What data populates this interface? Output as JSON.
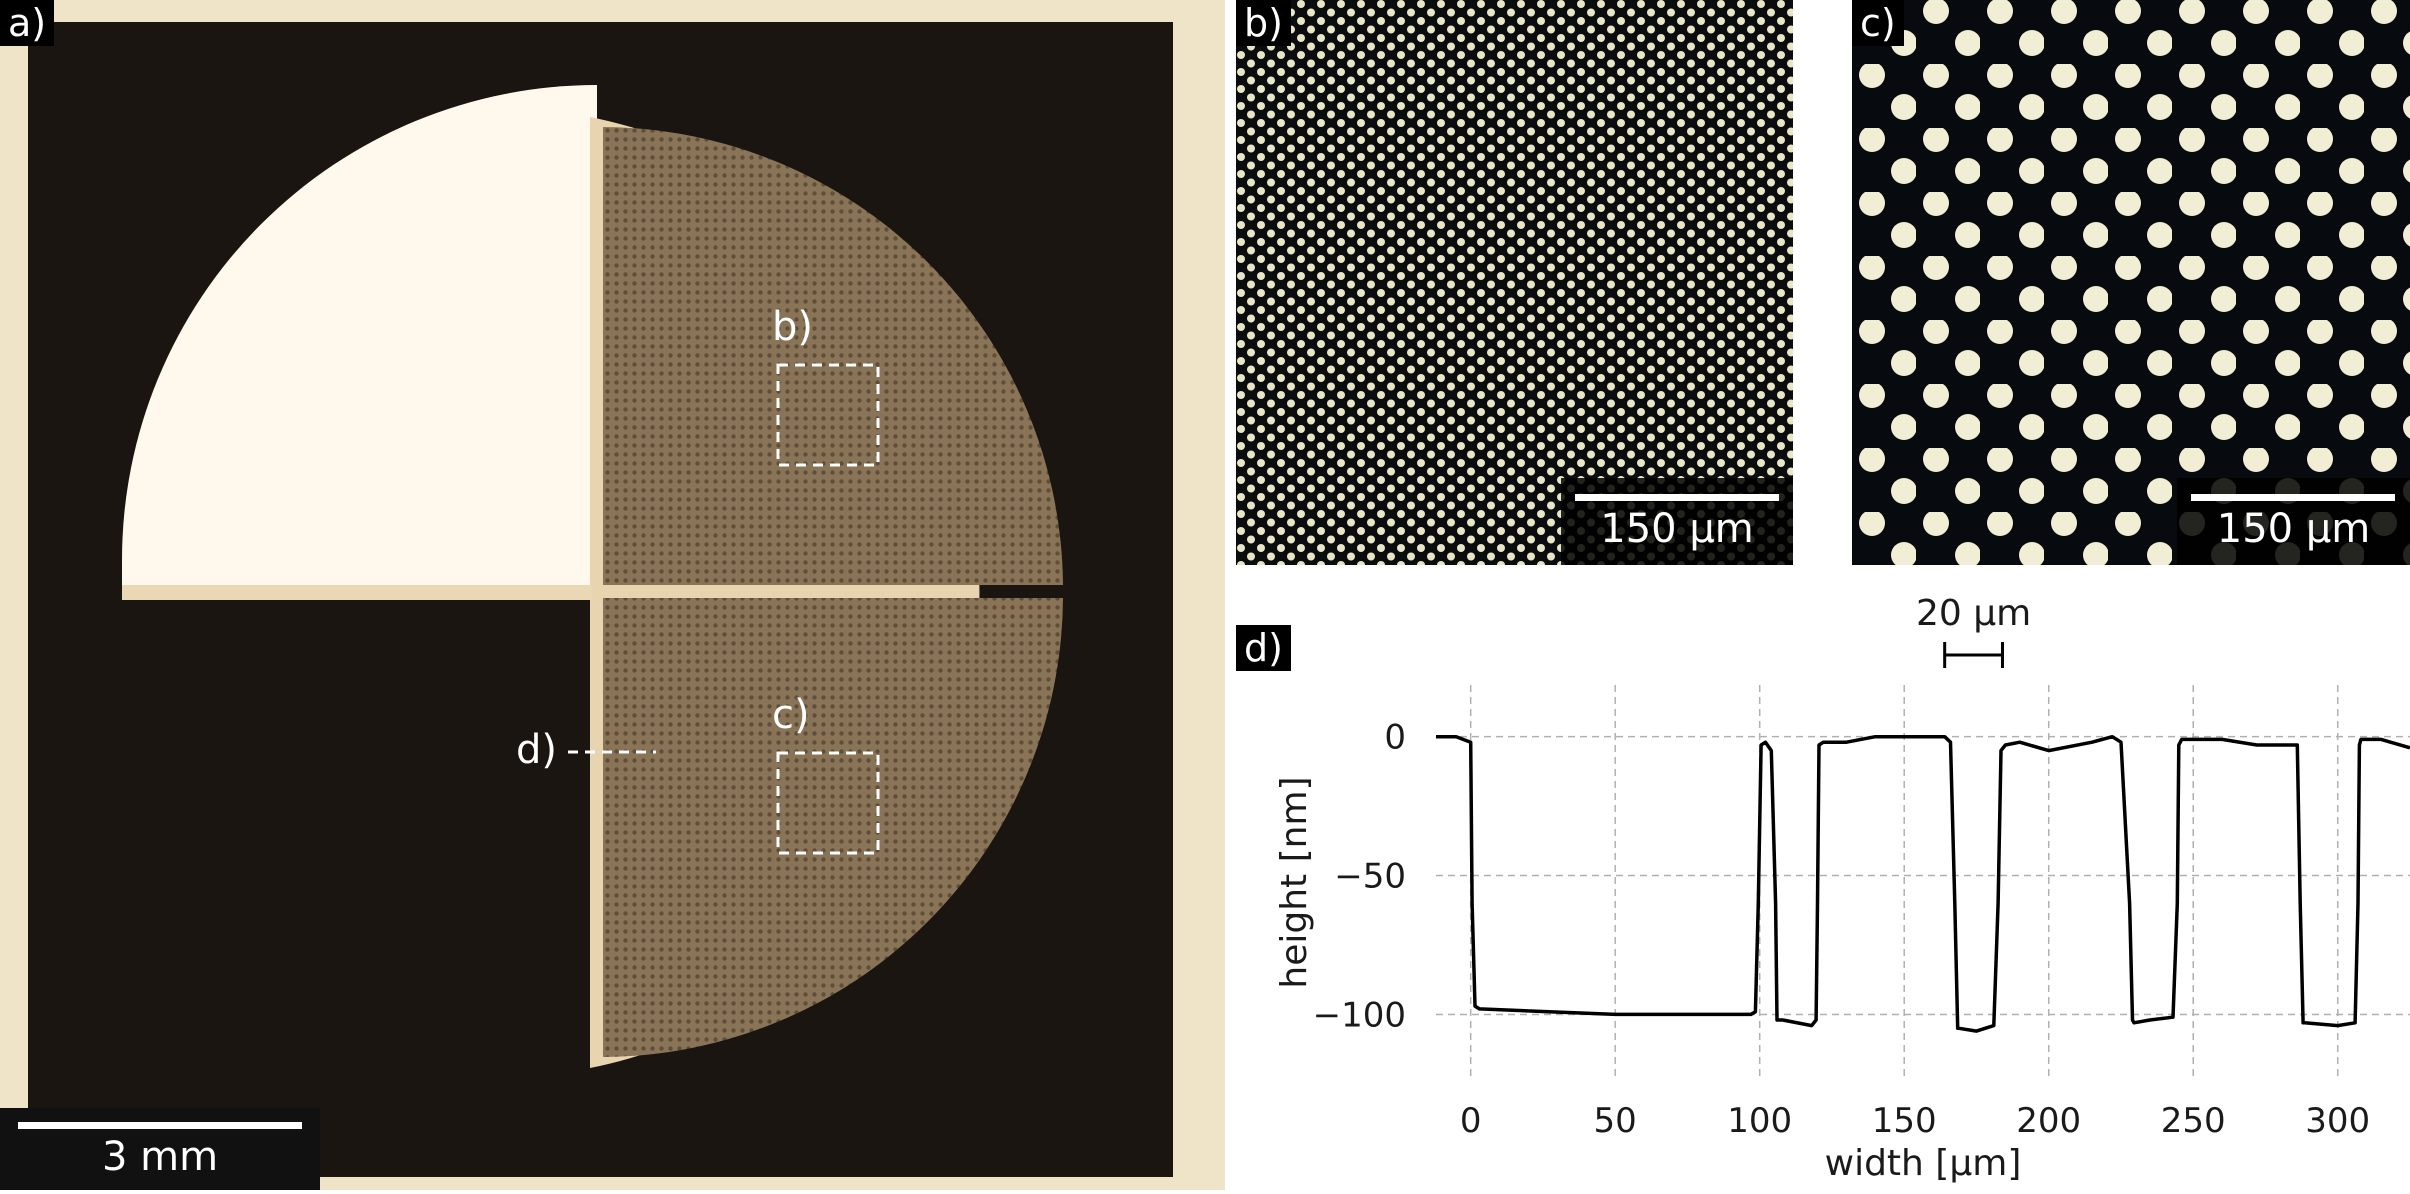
{
  "panel_a": {
    "label": "a)",
    "scale_label": "3 mm",
    "callouts": [
      {
        "id": "b",
        "label": "b)"
      },
      {
        "id": "c",
        "label": "c)"
      },
      {
        "id": "d",
        "label": "d)"
      }
    ]
  },
  "panel_b": {
    "label": "b)",
    "scale_label": "150 µm"
  },
  "panel_c": {
    "label": "c)",
    "scale_label": "150 µm"
  },
  "panel_d": {
    "label": "d)",
    "reference_label": "20 µm"
  },
  "chart_data": {
    "type": "line",
    "title": "",
    "xlabel": "width [µm]",
    "ylabel": "height [nm]",
    "xlim": [
      -12,
      325
    ],
    "ylim": [
      -120,
      15
    ],
    "grid": true,
    "x_ticks": [
      0,
      50,
      100,
      150,
      200,
      250,
      300
    ],
    "y_ticks": [
      0,
      -50,
      -100
    ],
    "reference_bar": {
      "label": "20 µm",
      "x_start": 164,
      "x_end": 184
    },
    "series": [
      {
        "x": [
          -12,
          -5,
          0,
          0.5,
          1.5,
          3,
          50,
          97,
          98.5,
          99.5,
          100.5,
          102,
          104,
          105.5,
          106,
          108,
          118,
          119.5,
          120,
          120.5,
          122,
          130,
          140,
          164,
          166,
          167.5,
          168.5,
          169,
          175,
          181,
          182.5,
          183.5,
          185,
          190,
          200,
          215,
          222,
          225,
          228,
          229,
          229.5,
          235,
          243,
          244.5,
          245,
          246,
          260,
          272,
          286,
          287,
          288,
          288.5,
          300,
          306,
          307,
          307.5,
          308,
          315,
          325
        ],
        "y": [
          0,
          0,
          -2,
          -60,
          -97,
          -98,
          -100,
          -100,
          -99,
          -60,
          -3,
          -2,
          -5,
          -60,
          -102,
          -102,
          -104,
          -102,
          -60,
          -3,
          -2,
          -2,
          0,
          0,
          -2,
          -60,
          -105,
          -105,
          -106,
          -104,
          -60,
          -5,
          -3,
          -2,
          -5,
          -2,
          0,
          -2,
          -60,
          -102,
          -103,
          -102,
          -101,
          -60,
          -3,
          -1,
          -1,
          -3,
          -3,
          -60,
          -103,
          -103,
          -104,
          -103,
          -60,
          -3,
          -1,
          -1,
          -4
        ]
      }
    ]
  }
}
